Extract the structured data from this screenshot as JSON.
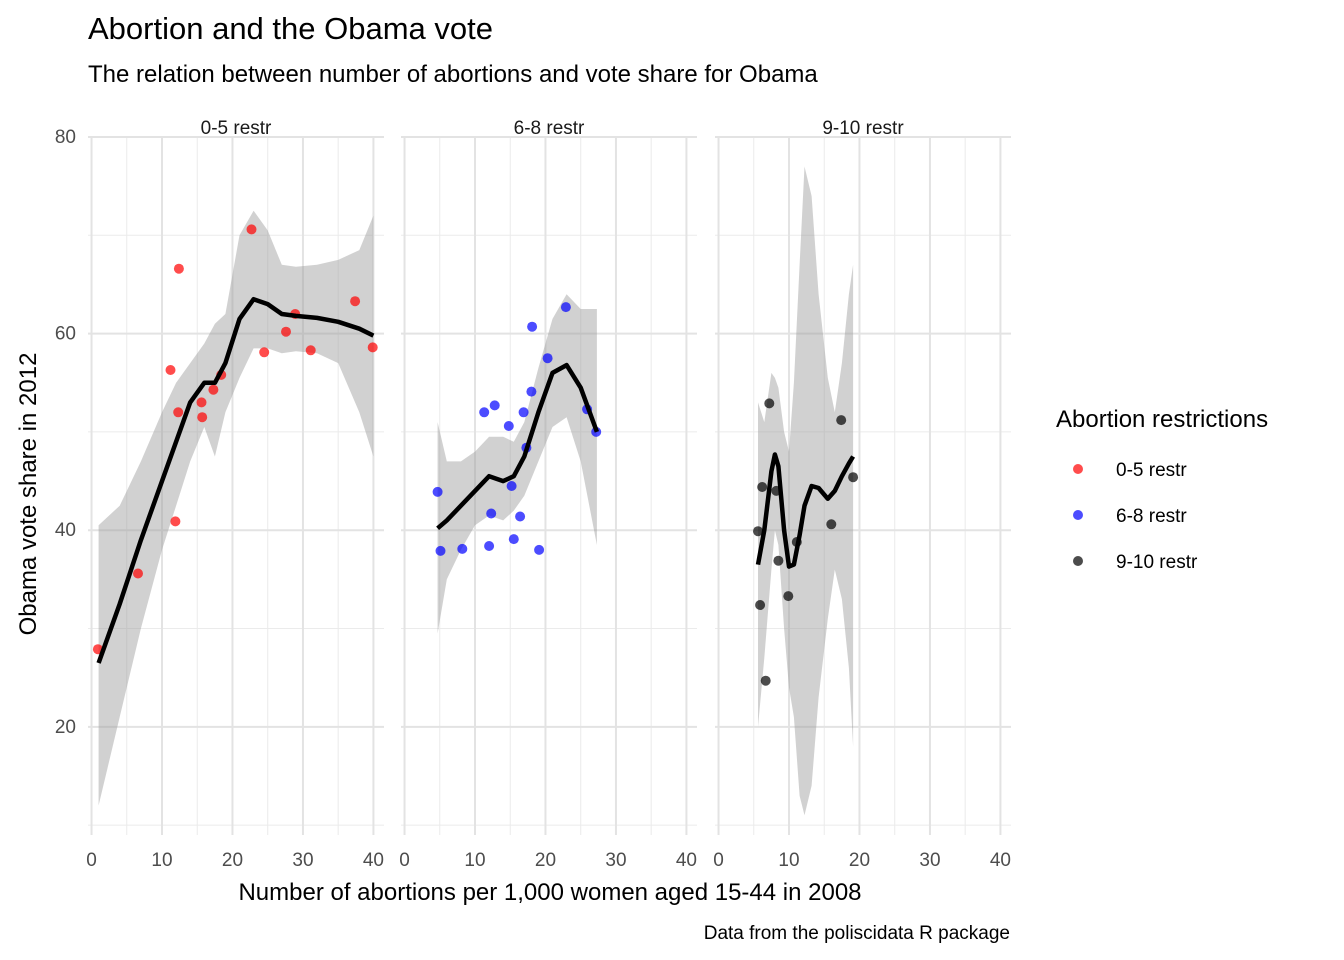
{
  "chart_data": {
    "type": "scatter",
    "title": "Abortion and the Obama vote",
    "subtitle": "The relation between number of abortions and vote share for Obama",
    "xlabel": "Number of abortions per 1,000 women aged 15-44 in 2008",
    "ylabel": "Obama vote share in 2012",
    "caption": "Data from the poliscidata R package",
    "xlim": [
      -0.5,
      41.5
    ],
    "ylim": [
      9,
      80
    ],
    "x_ticks": [
      0,
      10,
      20,
      30,
      40
    ],
    "x_tick_labels": [
      "0",
      "10",
      "20",
      "30",
      "40"
    ],
    "y_ticks": [
      20,
      40,
      60,
      80
    ],
    "y_tick_labels": [
      "20",
      "40",
      "60",
      "80"
    ],
    "grid": true,
    "legend": {
      "title": "Abortion restrictions",
      "position": "right",
      "entries": [
        "0-5 restr",
        "6-8 restr",
        "9-10 restr"
      ]
    },
    "colors": {
      "0-5 restr": "#ff0000",
      "6-8 restr": "#0000ff",
      "9-10 restr": "#000000",
      "smooth_line": "#000000",
      "ribbon": "#999999"
    },
    "panels": [
      {
        "name": "0-5 restr",
        "points": [
          {
            "x": 0.9,
            "y": 27.9
          },
          {
            "x": 6.6,
            "y": 35.6
          },
          {
            "x": 11.2,
            "y": 56.3
          },
          {
            "x": 11.9,
            "y": 40.9
          },
          {
            "x": 12.3,
            "y": 52.0
          },
          {
            "x": 12.4,
            "y": 66.6
          },
          {
            "x": 15.6,
            "y": 53.0
          },
          {
            "x": 15.7,
            "y": 51.5
          },
          {
            "x": 17.3,
            "y": 54.3
          },
          {
            "x": 18.4,
            "y": 55.8
          },
          {
            "x": 22.7,
            "y": 70.6
          },
          {
            "x": 24.5,
            "y": 58.1
          },
          {
            "x": 27.6,
            "y": 60.2
          },
          {
            "x": 28.9,
            "y": 62.0
          },
          {
            "x": 31.1,
            "y": 58.3
          },
          {
            "x": 37.4,
            "y": 63.3
          },
          {
            "x": 39.9,
            "y": 58.6
          }
        ],
        "smooth": [
          {
            "x": 1,
            "y": 26.5,
            "lo": 12,
            "hi": 40.5
          },
          {
            "x": 4,
            "y": 32.5,
            "lo": 21,
            "hi": 42.5
          },
          {
            "x": 7,
            "y": 39,
            "lo": 30,
            "hi": 47
          },
          {
            "x": 10,
            "y": 45,
            "lo": 38,
            "hi": 52
          },
          {
            "x": 12,
            "y": 49,
            "lo": 42.5,
            "hi": 55
          },
          {
            "x": 14,
            "y": 53,
            "lo": 47,
            "hi": 57
          },
          {
            "x": 16,
            "y": 55,
            "lo": 50.5,
            "hi": 59
          },
          {
            "x": 17.5,
            "y": 55,
            "lo": 47.5,
            "hi": 61
          },
          {
            "x": 19,
            "y": 57,
            "lo": 52,
            "hi": 62
          },
          {
            "x": 21,
            "y": 61.5,
            "lo": 55.5,
            "hi": 70
          },
          {
            "x": 23,
            "y": 63.5,
            "lo": 58.5,
            "hi": 72.5
          },
          {
            "x": 25,
            "y": 63,
            "lo": 58.5,
            "hi": 70.5
          },
          {
            "x": 27,
            "y": 62,
            "lo": 58,
            "hi": 67
          },
          {
            "x": 29,
            "y": 61.8,
            "lo": 58.2,
            "hi": 66.8
          },
          {
            "x": 32,
            "y": 61.6,
            "lo": 58,
            "hi": 67
          },
          {
            "x": 35,
            "y": 61.2,
            "lo": 57,
            "hi": 67.5
          },
          {
            "x": 38,
            "y": 60.5,
            "lo": 52,
            "hi": 68.5
          },
          {
            "x": 40,
            "y": 59.8,
            "lo": 47.5,
            "hi": 72
          }
        ]
      },
      {
        "name": "6-8 restr",
        "points": [
          {
            "x": 4.7,
            "y": 43.9
          },
          {
            "x": 5.1,
            "y": 37.9
          },
          {
            "x": 8.2,
            "y": 38.1
          },
          {
            "x": 11.3,
            "y": 52.0
          },
          {
            "x": 12.0,
            "y": 38.4
          },
          {
            "x": 12.3,
            "y": 41.7
          },
          {
            "x": 12.8,
            "y": 52.7
          },
          {
            "x": 14.8,
            "y": 50.6
          },
          {
            "x": 15.2,
            "y": 44.5
          },
          {
            "x": 15.5,
            "y": 39.1
          },
          {
            "x": 16.4,
            "y": 41.4
          },
          {
            "x": 16.9,
            "y": 52.0
          },
          {
            "x": 17.3,
            "y": 48.4
          },
          {
            "x": 18.0,
            "y": 54.1
          },
          {
            "x": 18.1,
            "y": 60.7
          },
          {
            "x": 19.1,
            "y": 38.0
          },
          {
            "x": 20.3,
            "y": 57.5
          },
          {
            "x": 22.9,
            "y": 62.7
          },
          {
            "x": 25.9,
            "y": 52.3
          },
          {
            "x": 27.2,
            "y": 50.0
          }
        ],
        "smooth": [
          {
            "x": 4.7,
            "y": 40.2,
            "lo": 29.5,
            "hi": 51
          },
          {
            "x": 6,
            "y": 41,
            "lo": 35,
            "hi": 47
          },
          {
            "x": 8,
            "y": 42.5,
            "lo": 38,
            "hi": 47
          },
          {
            "x": 10,
            "y": 44,
            "lo": 40.5,
            "hi": 48
          },
          {
            "x": 12,
            "y": 45.5,
            "lo": 41.5,
            "hi": 49.5
          },
          {
            "x": 14,
            "y": 45,
            "lo": 41,
            "hi": 49.5
          },
          {
            "x": 15.5,
            "y": 45.5,
            "lo": 42,
            "hi": 49
          },
          {
            "x": 17,
            "y": 47.5,
            "lo": 43.5,
            "hi": 51
          },
          {
            "x": 19,
            "y": 52,
            "lo": 47,
            "hi": 56.5
          },
          {
            "x": 21,
            "y": 56,
            "lo": 50.5,
            "hi": 61.5
          },
          {
            "x": 23,
            "y": 56.8,
            "lo": 51.5,
            "hi": 64
          },
          {
            "x": 25,
            "y": 54.5,
            "lo": 47,
            "hi": 62.5
          },
          {
            "x": 27.3,
            "y": 50,
            "lo": 38.5,
            "hi": 62.5
          }
        ]
      },
      {
        "name": "9-10 restr",
        "points": [
          {
            "x": 5.6,
            "y": 39.9
          },
          {
            "x": 5.9,
            "y": 32.4
          },
          {
            "x": 6.2,
            "y": 44.4
          },
          {
            "x": 6.7,
            "y": 24.7
          },
          {
            "x": 7.2,
            "y": 52.9
          },
          {
            "x": 8.2,
            "y": 44.0
          },
          {
            "x": 8.5,
            "y": 36.9
          },
          {
            "x": 9.9,
            "y": 33.3
          },
          {
            "x": 11.1,
            "y": 38.8
          },
          {
            "x": 16.0,
            "y": 40.6
          },
          {
            "x": 17.4,
            "y": 51.2
          },
          {
            "x": 19.1,
            "y": 45.4
          }
        ],
        "smooth": [
          {
            "x": 5.6,
            "y": 36.5,
            "lo": 20,
            "hi": 53
          },
          {
            "x": 6.5,
            "y": 40,
            "lo": 27,
            "hi": 51
          },
          {
            "x": 7.5,
            "y": 46,
            "lo": 36,
            "hi": 56
          },
          {
            "x": 8,
            "y": 47.7,
            "lo": 40,
            "hi": 55.5
          },
          {
            "x": 8.5,
            "y": 46.5,
            "lo": 38.5,
            "hi": 54.5
          },
          {
            "x": 9.3,
            "y": 40,
            "lo": 30,
            "hi": 50
          },
          {
            "x": 10,
            "y": 36.3,
            "lo": 24,
            "hi": 48
          },
          {
            "x": 10.7,
            "y": 36.5,
            "lo": 21,
            "hi": 55
          },
          {
            "x": 11.5,
            "y": 39.5,
            "lo": 13,
            "hi": 67
          },
          {
            "x": 12.2,
            "y": 42.5,
            "lo": 11,
            "hi": 77
          },
          {
            "x": 13.2,
            "y": 44.5,
            "lo": 14,
            "hi": 74
          },
          {
            "x": 14.2,
            "y": 44.3,
            "lo": 23,
            "hi": 64
          },
          {
            "x": 15.5,
            "y": 43.2,
            "lo": 31,
            "hi": 55.5
          },
          {
            "x": 16.5,
            "y": 44,
            "lo": 36,
            "hi": 52
          },
          {
            "x": 17.5,
            "y": 45.5,
            "lo": 33,
            "hi": 57
          },
          {
            "x": 18.5,
            "y": 46.8,
            "lo": 26,
            "hi": 64
          },
          {
            "x": 19.1,
            "y": 47.5,
            "lo": 18,
            "hi": 67
          }
        ]
      }
    ]
  }
}
